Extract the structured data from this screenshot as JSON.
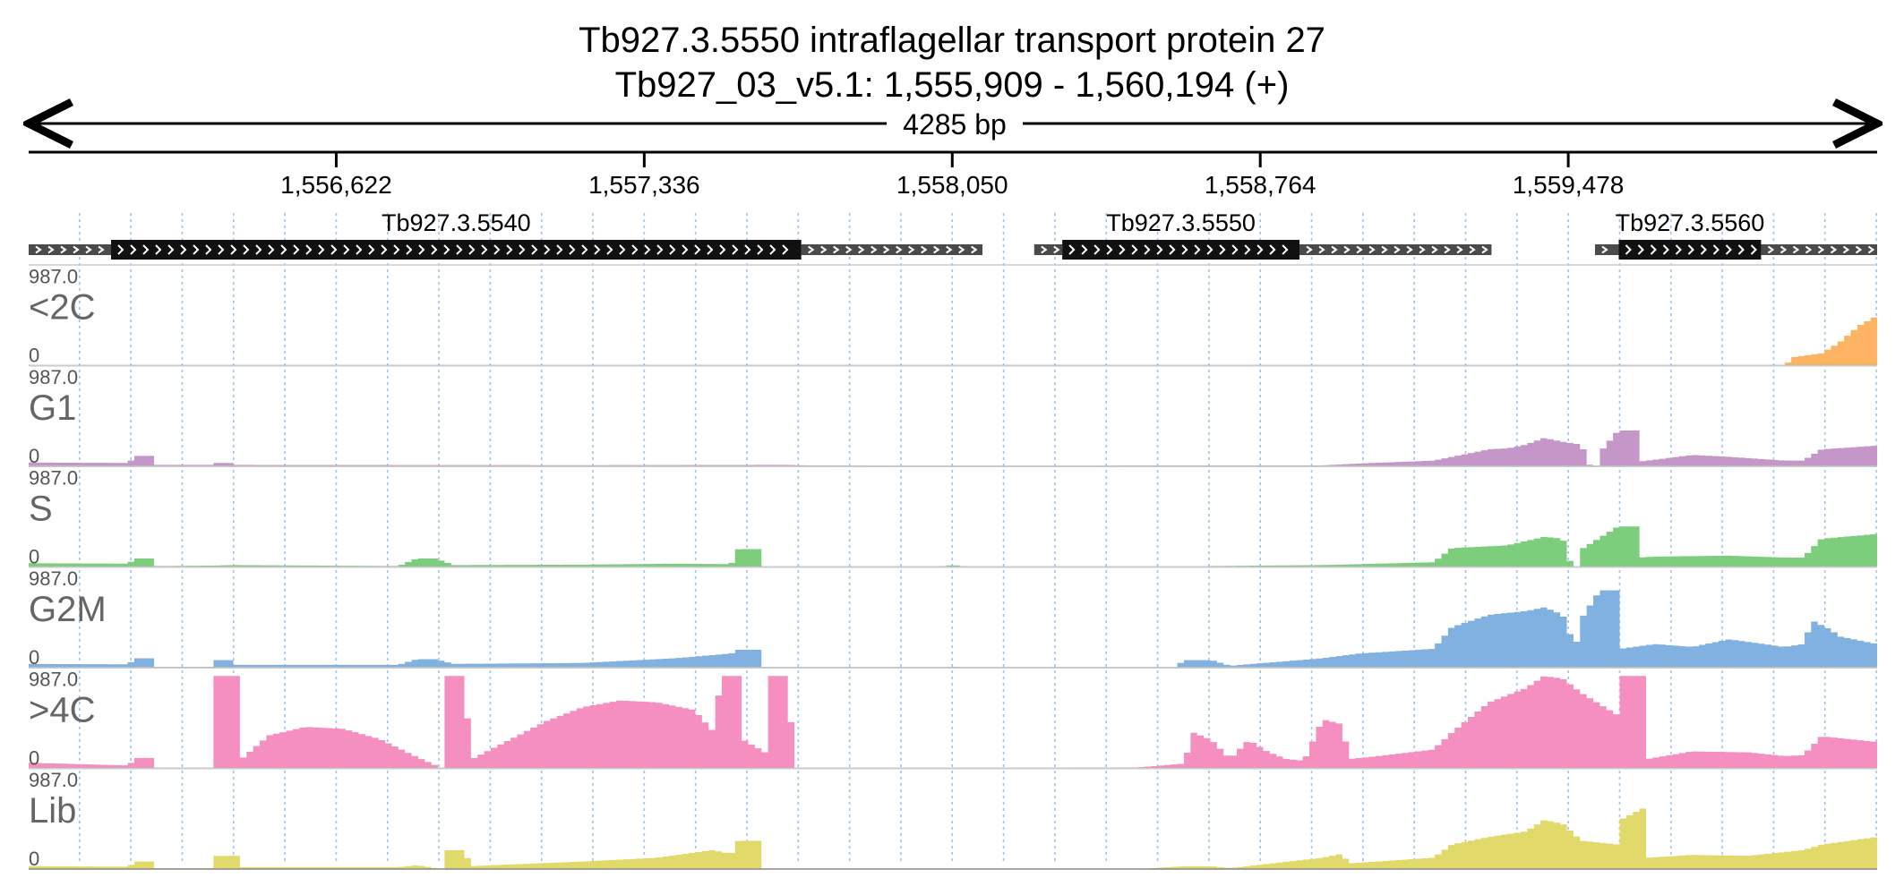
{
  "header": {
    "title_line1": "Tb927.3.5550  intraflagellar transport protein 27",
    "title_line2": "Tb927_03_v5.1: 1,555,909 - 1,560,194 (+)",
    "span_label": "4285 bp"
  },
  "chart_data": {
    "type": "area",
    "chromosome": "Tb927_03_v5.1",
    "x_range": [
      1555909,
      1560194
    ],
    "x_ticks": [
      1556622,
      1557336,
      1558050,
      1558764,
      1559478
    ],
    "x_tick_labels": [
      "1,556,622",
      "1,557,336",
      "1,558,050",
      "1,558,764",
      "1,559,478"
    ],
    "genes": [
      {
        "name": "Tb927.3.5540",
        "utr5": [
          1555909,
          1556100
        ],
        "cds": [
          1556100,
          1557700
        ],
        "utr3": [
          1557700,
          1558120
        ]
      },
      {
        "name": "Tb927.3.5550",
        "utr5": [
          1558240,
          1558305
        ],
        "cds": [
          1558305,
          1558855
        ],
        "utr3": [
          1558855,
          1559300
        ]
      },
      {
        "name": "Tb927.3.5560",
        "utr5": [
          1559540,
          1559595
        ],
        "cds": [
          1559595,
          1559925
        ],
        "utr3": [
          1559925,
          1560194
        ]
      }
    ],
    "tracks": [
      {
        "name": "<2C",
        "max": "987.0",
        "min": "0",
        "color": "#fdb462",
        "profile": [
          [
            0,
            0
          ],
          [
            0.95,
            0
          ],
          [
            0.955,
            90
          ],
          [
            0.97,
            130
          ],
          [
            0.98,
            250
          ],
          [
            0.99,
            420
          ],
          [
            1.0,
            530
          ]
        ]
      },
      {
        "name": "G1",
        "max": "987.0",
        "min": "0",
        "color": "#c597c9",
        "profile": [
          [
            0,
            40
          ],
          [
            0.055,
            35
          ],
          [
            0.056,
            110
          ],
          [
            0.068,
            110
          ],
          [
            0.069,
            15
          ],
          [
            0.1,
            15
          ],
          [
            0.101,
            35
          ],
          [
            0.11,
            35
          ],
          [
            0.111,
            15
          ],
          [
            0.3,
            12
          ],
          [
            0.4,
            15
          ],
          [
            0.35,
            12
          ],
          [
            0.4,
            15
          ],
          [
            0.41,
            15
          ],
          [
            0.42,
            10
          ],
          [
            0.52,
            0
          ],
          [
            0.55,
            0
          ],
          [
            0.6,
            10
          ],
          [
            0.7,
            10
          ],
          [
            0.72,
            30
          ],
          [
            0.76,
            60
          ],
          [
            0.77,
            100
          ],
          [
            0.79,
            180
          ],
          [
            0.8,
            190
          ],
          [
            0.81,
            230
          ],
          [
            0.82,
            300
          ],
          [
            0.83,
            260
          ],
          [
            0.84,
            230
          ],
          [
            0.845,
            0
          ],
          [
            0.85,
            0
          ],
          [
            0.851,
            170
          ],
          [
            0.86,
            380
          ],
          [
            0.87,
            380
          ],
          [
            0.871,
            50
          ],
          [
            0.88,
            70
          ],
          [
            0.9,
            120
          ],
          [
            0.92,
            100
          ],
          [
            0.95,
            60
          ],
          [
            0.96,
            60
          ],
          [
            0.97,
            180
          ],
          [
            1.0,
            220
          ]
        ]
      },
      {
        "name": "S",
        "max": "987.0",
        "min": "0",
        "color": "#7ccd7c",
        "profile": [
          [
            0,
            40
          ],
          [
            0.055,
            35
          ],
          [
            0.056,
            90
          ],
          [
            0.068,
            90
          ],
          [
            0.069,
            10
          ],
          [
            0.1,
            15
          ],
          [
            0.11,
            20
          ],
          [
            0.2,
            10
          ],
          [
            0.21,
            90
          ],
          [
            0.22,
            90
          ],
          [
            0.23,
            20
          ],
          [
            0.3,
            25
          ],
          [
            0.35,
            35
          ],
          [
            0.38,
            30
          ],
          [
            0.384,
            190
          ],
          [
            0.395,
            190
          ],
          [
            0.396,
            0
          ],
          [
            0.49,
            0
          ],
          [
            0.5,
            20
          ],
          [
            0.51,
            0
          ],
          [
            0.63,
            0
          ],
          [
            0.64,
            10
          ],
          [
            0.7,
            20
          ],
          [
            0.72,
            30
          ],
          [
            0.76,
            50
          ],
          [
            0.77,
            200
          ],
          [
            0.8,
            230
          ],
          [
            0.82,
            320
          ],
          [
            0.83,
            300
          ],
          [
            0.835,
            0
          ],
          [
            0.84,
            0
          ],
          [
            0.841,
            200
          ],
          [
            0.86,
            430
          ],
          [
            0.87,
            430
          ],
          [
            0.871,
            100
          ],
          [
            0.88,
            110
          ],
          [
            0.92,
            120
          ],
          [
            0.95,
            100
          ],
          [
            0.96,
            100
          ],
          [
            0.97,
            300
          ],
          [
            1.0,
            350
          ]
        ]
      },
      {
        "name": "G2M",
        "max": "987.0",
        "min": "0",
        "color": "#80b1e0",
        "profile": [
          [
            0,
            40
          ],
          [
            0.055,
            35
          ],
          [
            0.056,
            100
          ],
          [
            0.068,
            100
          ],
          [
            0.069,
            10
          ],
          [
            0.1,
            10
          ],
          [
            0.101,
            80
          ],
          [
            0.11,
            80
          ],
          [
            0.111,
            30
          ],
          [
            0.2,
            30
          ],
          [
            0.21,
            90
          ],
          [
            0.22,
            90
          ],
          [
            0.23,
            40
          ],
          [
            0.3,
            50
          ],
          [
            0.35,
            100
          ],
          [
            0.38,
            150
          ],
          [
            0.384,
            190
          ],
          [
            0.395,
            190
          ],
          [
            0.396,
            0
          ],
          [
            0.49,
            0
          ],
          [
            0.5,
            10
          ],
          [
            0.51,
            0
          ],
          [
            0.62,
            0
          ],
          [
            0.625,
            80
          ],
          [
            0.64,
            80
          ],
          [
            0.65,
            20
          ],
          [
            0.7,
            100
          ],
          [
            0.72,
            150
          ],
          [
            0.76,
            200
          ],
          [
            0.77,
            430
          ],
          [
            0.79,
            560
          ],
          [
            0.81,
            600
          ],
          [
            0.82,
            640
          ],
          [
            0.83,
            560
          ],
          [
            0.835,
            300
          ],
          [
            0.84,
            250
          ],
          [
            0.841,
            550
          ],
          [
            0.85,
            820
          ],
          [
            0.86,
            820
          ],
          [
            0.861,
            200
          ],
          [
            0.88,
            250
          ],
          [
            0.9,
            220
          ],
          [
            0.92,
            300
          ],
          [
            0.95,
            220
          ],
          [
            0.96,
            250
          ],
          [
            0.965,
            500
          ],
          [
            0.975,
            400
          ],
          [
            0.98,
            330
          ],
          [
            1.0,
            250
          ]
        ]
      },
      {
        "name": ">4C",
        "max": "987.0",
        "min": "0",
        "color": "#f48fc0",
        "profile": [
          [
            0,
            60
          ],
          [
            0.055,
            30
          ],
          [
            0.056,
            110
          ],
          [
            0.068,
            110
          ],
          [
            0.069,
            0
          ],
          [
            0.1,
            0
          ],
          [
            0.101,
            980
          ],
          [
            0.113,
            980
          ],
          [
            0.114,
            80
          ],
          [
            0.13,
            350
          ],
          [
            0.15,
            440
          ],
          [
            0.17,
            420
          ],
          [
            0.19,
            310
          ],
          [
            0.21,
            120
          ],
          [
            0.224,
            0
          ],
          [
            0.225,
            980
          ],
          [
            0.237,
            980
          ],
          [
            0.238,
            80
          ],
          [
            0.26,
            300
          ],
          [
            0.28,
            500
          ],
          [
            0.3,
            650
          ],
          [
            0.32,
            720
          ],
          [
            0.34,
            700
          ],
          [
            0.36,
            620
          ],
          [
            0.37,
            400
          ],
          [
            0.375,
            980
          ],
          [
            0.386,
            980
          ],
          [
            0.387,
            300
          ],
          [
            0.4,
            150
          ],
          [
            0.401,
            980
          ],
          [
            0.412,
            980
          ],
          [
            0.413,
            0
          ],
          [
            0.5,
            0
          ],
          [
            0.6,
            10
          ],
          [
            0.625,
            50
          ],
          [
            0.63,
            380
          ],
          [
            0.64,
            300
          ],
          [
            0.65,
            100
          ],
          [
            0.66,
            300
          ],
          [
            0.67,
            180
          ],
          [
            0.68,
            100
          ],
          [
            0.69,
            80
          ],
          [
            0.7,
            520
          ],
          [
            0.71,
            470
          ],
          [
            0.715,
            100
          ],
          [
            0.73,
            130
          ],
          [
            0.76,
            200
          ],
          [
            0.77,
            380
          ],
          [
            0.79,
            700
          ],
          [
            0.81,
            850
          ],
          [
            0.82,
            980
          ],
          [
            0.83,
            950
          ],
          [
            0.84,
            800
          ],
          [
            0.86,
            560
          ],
          [
            0.861,
            980
          ],
          [
            0.875,
            980
          ],
          [
            0.876,
            100
          ],
          [
            0.9,
            180
          ],
          [
            0.93,
            170
          ],
          [
            0.95,
            130
          ],
          [
            0.96,
            140
          ],
          [
            0.97,
            340
          ],
          [
            1.0,
            280
          ]
        ]
      },
      {
        "name": "Lib",
        "max": "987.0",
        "min": "0",
        "color": "#e2d96b",
        "profile": [
          [
            0,
            30
          ],
          [
            0.055,
            25
          ],
          [
            0.056,
            80
          ],
          [
            0.068,
            80
          ],
          [
            0.069,
            10
          ],
          [
            0.1,
            10
          ],
          [
            0.101,
            140
          ],
          [
            0.113,
            140
          ],
          [
            0.114,
            20
          ],
          [
            0.2,
            20
          ],
          [
            0.21,
            40
          ],
          [
            0.224,
            0
          ],
          [
            0.225,
            200
          ],
          [
            0.237,
            200
          ],
          [
            0.238,
            30
          ],
          [
            0.3,
            80
          ],
          [
            0.34,
            120
          ],
          [
            0.37,
            200
          ],
          [
            0.38,
            160
          ],
          [
            0.384,
            300
          ],
          [
            0.395,
            300
          ],
          [
            0.396,
            0
          ],
          [
            0.6,
            0
          ],
          [
            0.625,
            30
          ],
          [
            0.64,
            30
          ],
          [
            0.65,
            10
          ],
          [
            0.7,
            120
          ],
          [
            0.71,
            160
          ],
          [
            0.715,
            60
          ],
          [
            0.76,
            120
          ],
          [
            0.77,
            260
          ],
          [
            0.79,
            340
          ],
          [
            0.81,
            400
          ],
          [
            0.82,
            520
          ],
          [
            0.83,
            480
          ],
          [
            0.84,
            300
          ],
          [
            0.86,
            260
          ],
          [
            0.861,
            520
          ],
          [
            0.875,
            660
          ],
          [
            0.876,
            120
          ],
          [
            0.9,
            150
          ],
          [
            0.93,
            140
          ],
          [
            0.96,
            200
          ],
          [
            0.97,
            260
          ],
          [
            1.0,
            340
          ]
        ]
      }
    ]
  }
}
